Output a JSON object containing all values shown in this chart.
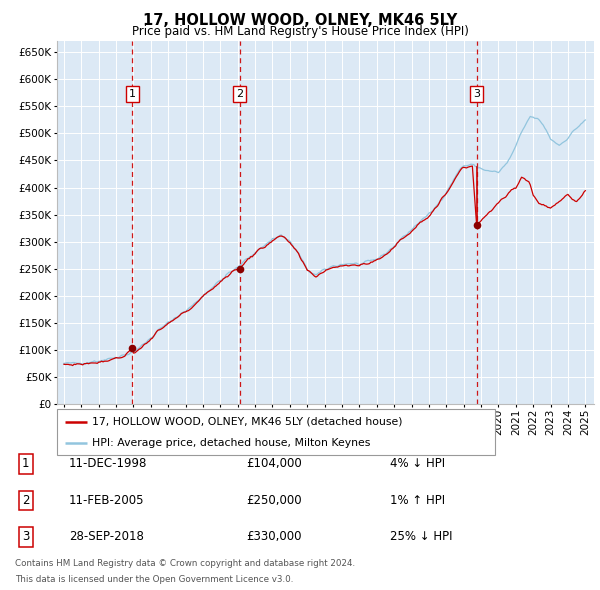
{
  "title": "17, HOLLOW WOOD, OLNEY, MK46 5LY",
  "subtitle": "Price paid vs. HM Land Registry's House Price Index (HPI)",
  "legend_line1": "17, HOLLOW WOOD, OLNEY, MK46 5LY (detached house)",
  "legend_line2": "HPI: Average price, detached house, Milton Keynes",
  "transactions": [
    {
      "num": 1,
      "date": "11-DEC-1998",
      "price": 104000,
      "hpi_pct": "4%",
      "hpi_dir": "↓"
    },
    {
      "num": 2,
      "date": "11-FEB-2005",
      "price": 250000,
      "hpi_pct": "1%",
      "hpi_dir": "↑"
    },
    {
      "num": 3,
      "date": "28-SEP-2018",
      "price": 330000,
      "hpi_pct": "25%",
      "hpi_dir": "↓"
    }
  ],
  "transaction_dates_decimal": [
    1998.94,
    2005.12,
    2018.75
  ],
  "transaction_prices": [
    104000,
    250000,
    330000
  ],
  "footnote_line1": "Contains HM Land Registry data © Crown copyright and database right 2024.",
  "footnote_line2": "This data is licensed under the Open Government Licence v3.0.",
  "hpi_color": "#92c5de",
  "price_color": "#cc0000",
  "dashed_line_color": "#cc0000",
  "marker_color": "#8b0000",
  "plot_bg": "#dce9f5",
  "grid_color": "#ffffff",
  "ylim": [
    0,
    670000
  ],
  "yticks": [
    0,
    50000,
    100000,
    150000,
    200000,
    250000,
    300000,
    350000,
    400000,
    450000,
    500000,
    550000,
    600000,
    650000
  ],
  "xlim_start": 1994.6,
  "xlim_end": 2025.5,
  "hpi_anchors_year": [
    1995.0,
    1996.0,
    1997.0,
    1997.5,
    1998.0,
    1998.5,
    1999.0,
    1999.5,
    2000.0,
    2000.5,
    2001.0,
    2001.5,
    2002.0,
    2002.5,
    2003.0,
    2003.5,
    2004.0,
    2004.5,
    2005.0,
    2005.5,
    2006.0,
    2006.5,
    2007.0,
    2007.5,
    2008.0,
    2008.5,
    2009.0,
    2009.5,
    2010.0,
    2010.5,
    2011.0,
    2011.5,
    2012.0,
    2012.5,
    2013.0,
    2013.5,
    2014.0,
    2014.5,
    2015.0,
    2015.5,
    2016.0,
    2016.5,
    2017.0,
    2017.5,
    2017.8,
    2018.0,
    2018.5,
    2019.0,
    2019.5,
    2020.0,
    2020.5,
    2021.0,
    2021.3,
    2021.8,
    2022.0,
    2022.3,
    2022.6,
    2023.0,
    2023.5,
    2024.0,
    2024.5,
    2025.0
  ],
  "hpi_anchors_val": [
    75000,
    76000,
    80000,
    83000,
    87000,
    91000,
    97000,
    108000,
    122000,
    138000,
    150000,
    162000,
    172000,
    185000,
    200000,
    215000,
    228000,
    242000,
    252000,
    268000,
    280000,
    292000,
    305000,
    312000,
    300000,
    278000,
    248000,
    238000,
    248000,
    255000,
    258000,
    260000,
    258000,
    262000,
    268000,
    278000,
    292000,
    308000,
    322000,
    338000,
    350000,
    368000,
    392000,
    418000,
    435000,
    440000,
    442000,
    435000,
    430000,
    428000,
    445000,
    475000,
    500000,
    530000,
    530000,
    525000,
    515000,
    490000,
    478000,
    492000,
    510000,
    525000
  ],
  "price_anchors_year": [
    1995.0,
    1996.0,
    1997.0,
    1997.5,
    1998.0,
    1998.5,
    1998.94,
    1999.0,
    1999.5,
    2000.0,
    2000.5,
    2001.0,
    2001.5,
    2002.0,
    2002.5,
    2003.0,
    2003.5,
    2004.0,
    2004.5,
    2005.0,
    2005.12,
    2005.5,
    2006.0,
    2006.5,
    2007.0,
    2007.5,
    2008.0,
    2008.5,
    2009.0,
    2009.5,
    2010.0,
    2010.5,
    2011.0,
    2011.5,
    2012.0,
    2012.5,
    2013.0,
    2013.5,
    2014.0,
    2014.5,
    2015.0,
    2015.5,
    2016.0,
    2016.5,
    2017.0,
    2017.5,
    2017.8,
    2018.0,
    2018.5,
    2018.75,
    2019.0,
    2019.5,
    2020.0,
    2020.5,
    2021.0,
    2021.3,
    2021.8,
    2022.0,
    2022.3,
    2022.6,
    2023.0,
    2023.5,
    2024.0,
    2024.5,
    2025.0
  ],
  "price_anchors_val": [
    73000,
    74000,
    78000,
    81000,
    85000,
    89000,
    104000,
    95000,
    105000,
    120000,
    136000,
    148000,
    160000,
    170000,
    183000,
    198000,
    213000,
    226000,
    240000,
    250000,
    250000,
    266000,
    278000,
    290000,
    303000,
    310000,
    298000,
    276000,
    246000,
    236000,
    246000,
    253000,
    256000,
    258000,
    256000,
    260000,
    266000,
    276000,
    290000,
    306000,
    320000,
    336000,
    348000,
    366000,
    390000,
    416000,
    433000,
    438000,
    440000,
    330000,
    338000,
    355000,
    370000,
    388000,
    400000,
    420000,
    410000,
    385000,
    372000,
    368000,
    362000,
    375000,
    388000,
    372000,
    392000
  ]
}
